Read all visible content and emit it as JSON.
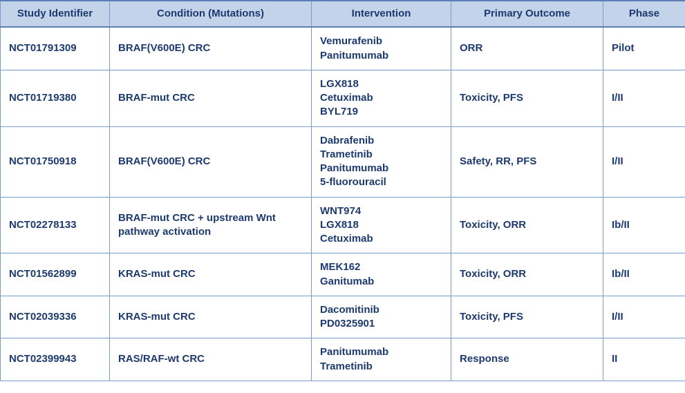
{
  "table": {
    "header_bg": "#c2d3ea",
    "header_color": "#1d3a6e",
    "cell_color": "#1d3a6e",
    "border_color": "#7a9ac8",
    "columns": [
      {
        "key": "study_id",
        "label": "Study Identifier"
      },
      {
        "key": "condition",
        "label": "Condition (Mutations)"
      },
      {
        "key": "intervention",
        "label": "Intervention"
      },
      {
        "key": "outcome",
        "label": "Primary Outcome"
      },
      {
        "key": "phase",
        "label": "Phase"
      }
    ],
    "rows": [
      {
        "study_id": "NCT01791309",
        "condition": "BRAF(V600E) CRC",
        "intervention": [
          "Vemurafenib",
          "Panitumumab"
        ],
        "outcome": "ORR",
        "phase": "Pilot"
      },
      {
        "study_id": "NCT01719380",
        "condition": "BRAF-mut CRC",
        "intervention": [
          "LGX818",
          "Cetuximab",
          "BYL719"
        ],
        "outcome": "Toxicity, PFS",
        "phase": "I/II"
      },
      {
        "study_id": "NCT01750918",
        "condition": "BRAF(V600E) CRC",
        "intervention": [
          "Dabrafenib",
          "Trametinib",
          "Panitumumab",
          "5-fluorouracil"
        ],
        "outcome": "Safety, RR, PFS",
        "phase": "I/II"
      },
      {
        "study_id": "NCT02278133",
        "condition": "BRAF-mut CRC + upstream Wnt pathway activation",
        "intervention": [
          "WNT974",
          "LGX818",
          "Cetuximab"
        ],
        "outcome": "Toxicity, ORR",
        "phase": "Ib/II"
      },
      {
        "study_id": "NCT01562899",
        "condition": "KRAS-mut CRC",
        "intervention": [
          "MEK162",
          "Ganitumab"
        ],
        "outcome": "Toxicity, ORR",
        "phase": "Ib/II"
      },
      {
        "study_id": "NCT02039336",
        "condition": "KRAS-mut CRC",
        "intervention": [
          "Dacomitinib",
          "PD0325901"
        ],
        "outcome": "Toxicity, PFS",
        "phase": "I/II"
      },
      {
        "study_id": "NCT02399943",
        "condition": "RAS/RAF-wt CRC",
        "intervention": [
          "Panitumumab",
          "Trametinib"
        ],
        "outcome": "Response",
        "phase": "II"
      }
    ]
  }
}
